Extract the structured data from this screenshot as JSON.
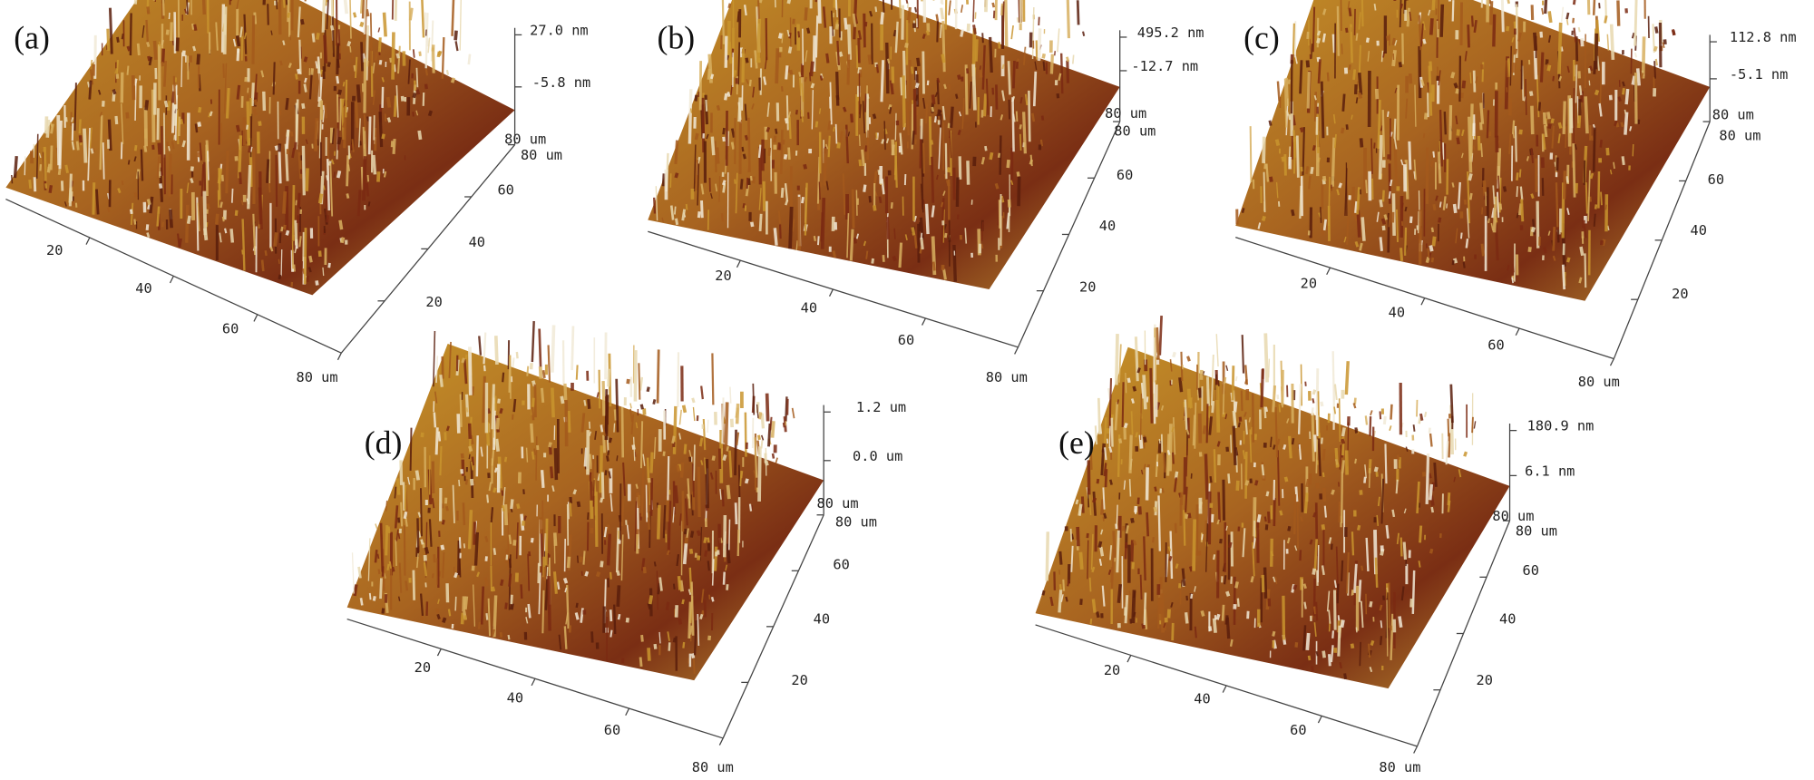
{
  "panels": [
    {
      "label": "(a)",
      "z_labels": [
        "27.0 nm",
        "-5.8 nm",
        "80 um"
      ],
      "y_end": "80 um",
      "x_ticks": [
        "20",
        "40",
        "60",
        "80 um"
      ],
      "y_ticks": [
        "20",
        "40",
        "60"
      ]
    },
    {
      "label": "(b)",
      "z_labels": [
        "495.2 nm",
        "-12.7 nm",
        "80 um"
      ],
      "y_end": "80 um",
      "x_ticks": [
        "20",
        "40",
        "60",
        "80 um"
      ],
      "y_ticks": [
        "20",
        "40",
        "60"
      ]
    },
    {
      "label": "(c)",
      "z_labels": [
        "112.8 nm",
        "-5.1 nm",
        "80 um"
      ],
      "y_end": "80 um",
      "x_ticks": [
        "20",
        "40",
        "60",
        "80 um"
      ],
      "y_ticks": [
        "20",
        "40",
        "60"
      ]
    },
    {
      "label": "(d)",
      "z_labels": [
        "1.2 um",
        "0.0 um",
        "80 um"
      ],
      "y_end": "80 um",
      "x_ticks": [
        "20",
        "40",
        "60",
        "80 um"
      ],
      "y_ticks": [
        "20",
        "40",
        "60"
      ]
    },
    {
      "label": "(e)",
      "z_labels": [
        "180.9 nm",
        "6.1 nm",
        "80 um"
      ],
      "y_end": "80 um",
      "x_ticks": [
        "20",
        "40",
        "60",
        "80 um"
      ],
      "y_ticks": [
        "20",
        "40",
        "60"
      ]
    }
  ]
}
